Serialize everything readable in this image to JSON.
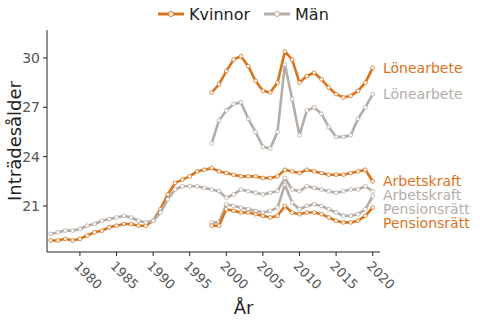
{
  "chart_data": {
    "type": "line",
    "x_label": "År",
    "y_label": "Inträdesålder",
    "xlim": [
      1975.5,
      2021
    ],
    "xticks": [
      1980,
      1985,
      1990,
      1995,
      2000,
      2005,
      2010,
      2015,
      2020
    ],
    "ylim": [
      18.2,
      31.7
    ],
    "yticks": [
      21,
      24,
      27,
      30
    ],
    "legend": "top",
    "marker": "circle",
    "grid": false,
    "series": [
      {
        "name": "Kvinnor",
        "label": "Lönearbete",
        "color": "#d9731c",
        "x": [
          1998,
          1999,
          2000,
          2001,
          2002,
          2003,
          2004,
          2005,
          2006,
          2007,
          2008,
          2009,
          2010,
          2011,
          2012,
          2013,
          2014,
          2015,
          2016,
          2017,
          2018,
          2019,
          2020
        ],
        "values": [
          27.9,
          28.4,
          29.2,
          29.9,
          30.1,
          29.5,
          28.6,
          28.0,
          27.9,
          28.5,
          30.4,
          29.9,
          28.5,
          28.9,
          29.1,
          28.7,
          28.2,
          27.8,
          27.6,
          27.7,
          28.0,
          28.5,
          29.4
        ]
      },
      {
        "name": "Män",
        "label": "Lönearbete",
        "color": "#b5ada6",
        "x": [
          1998,
          1999,
          2000,
          2001,
          2002,
          2003,
          2004,
          2005,
          2006,
          2007,
          2008,
          2009,
          2010,
          2011,
          2012,
          2013,
          2014,
          2015,
          2016,
          2017,
          2018,
          2019,
          2020
        ],
        "values": [
          24.8,
          26.2,
          26.8,
          27.2,
          27.3,
          26.3,
          25.5,
          24.6,
          24.5,
          25.5,
          29.6,
          27.5,
          25.3,
          26.8,
          27.0,
          26.6,
          25.8,
          25.2,
          25.2,
          25.3,
          26.3,
          27.0,
          27.8
        ]
      },
      {
        "name": "Kvinnor",
        "label": "Arbetskraft",
        "color": "#d9731c",
        "x": [
          1976,
          1977,
          1978,
          1979,
          1980,
          1981,
          1982,
          1983,
          1984,
          1985,
          1986,
          1987,
          1988,
          1989,
          1990,
          1991,
          1992,
          1993,
          1994,
          1995,
          1996,
          1997,
          1998,
          1999,
          2000,
          2001,
          2002,
          2003,
          2004,
          2005,
          2006,
          2007,
          2008,
          2009,
          2010,
          2011,
          2012,
          2013,
          2014,
          2015,
          2016,
          2017,
          2018,
          2019,
          2020
        ],
        "values": [
          18.9,
          18.9,
          19.0,
          18.9,
          19.0,
          19.2,
          19.4,
          19.5,
          19.7,
          19.8,
          19.9,
          19.9,
          19.8,
          19.8,
          20.1,
          20.8,
          21.7,
          22.4,
          22.6,
          22.8,
          23.1,
          23.2,
          23.3,
          23.1,
          23.0,
          22.9,
          22.8,
          22.8,
          22.8,
          22.7,
          22.7,
          22.8,
          23.2,
          23.1,
          23.0,
          23.2,
          23.1,
          23.0,
          22.9,
          22.9,
          22.9,
          23.0,
          23.1,
          23.2,
          22.5
        ]
      },
      {
        "name": "Män",
        "label": "Pensionsrätt",
        "color": "#b5ada6",
        "x": [
          1998,
          1999,
          2000,
          2001,
          2002,
          2003,
          2004,
          2005,
          2006,
          2007,
          2008,
          2009,
          2010,
          2011,
          2012,
          2013,
          2014,
          2015,
          2016,
          2017,
          2018,
          2019,
          2020
        ],
        "values": [
          20.0,
          20.0,
          21.1,
          21.0,
          20.9,
          20.8,
          20.7,
          20.6,
          20.7,
          20.9,
          22.3,
          21.2,
          20.8,
          21.0,
          21.1,
          21.0,
          20.8,
          20.6,
          20.4,
          20.4,
          20.5,
          20.8,
          21.6
        ]
      },
      {
        "name": "Män",
        "label": "Arbetskraft",
        "color": "#b5ada6",
        "x": [
          1976,
          1977,
          1978,
          1979,
          1980,
          1981,
          1982,
          1983,
          1984,
          1985,
          1986,
          1987,
          1988,
          1989,
          1990,
          1991,
          1992,
          1993,
          1994,
          1995,
          1996,
          1997,
          1998,
          1999,
          2000,
          2001,
          2002,
          2003,
          2004,
          2005,
          2006,
          2007,
          2008,
          2009,
          2010,
          2011,
          2012,
          2013,
          2014,
          2015,
          2016,
          2017,
          2018,
          2019,
          2020
        ],
        "values": [
          19.3,
          19.4,
          19.5,
          19.5,
          19.6,
          19.8,
          19.9,
          20.1,
          20.2,
          20.3,
          20.4,
          20.3,
          20.1,
          20.0,
          20.1,
          20.6,
          21.4,
          22.0,
          22.2,
          22.2,
          22.2,
          22.1,
          22.0,
          21.9,
          21.5,
          21.7,
          22.0,
          21.9,
          21.8,
          21.7,
          21.8,
          21.9,
          22.7,
          22.0,
          21.9,
          22.2,
          22.1,
          22.0,
          21.9,
          21.8,
          21.9,
          22.0,
          22.0,
          22.2,
          21.9
        ]
      },
      {
        "name": "Kvinnor",
        "label": "Pensionsrätt",
        "color": "#d9731c",
        "x": [
          1998,
          1999,
          2000,
          2001,
          2002,
          2003,
          2004,
          2005,
          2006,
          2007,
          2008,
          2009,
          2010,
          2011,
          2012,
          2013,
          2014,
          2015,
          2016,
          2017,
          2018,
          2019,
          2020
        ],
        "values": [
          19.8,
          19.8,
          20.8,
          20.7,
          20.6,
          20.6,
          20.5,
          20.4,
          20.3,
          20.4,
          21.0,
          20.6,
          20.5,
          20.6,
          20.6,
          20.5,
          20.3,
          20.1,
          20.0,
          20.0,
          20.1,
          20.4,
          20.9
        ]
      }
    ]
  }
}
